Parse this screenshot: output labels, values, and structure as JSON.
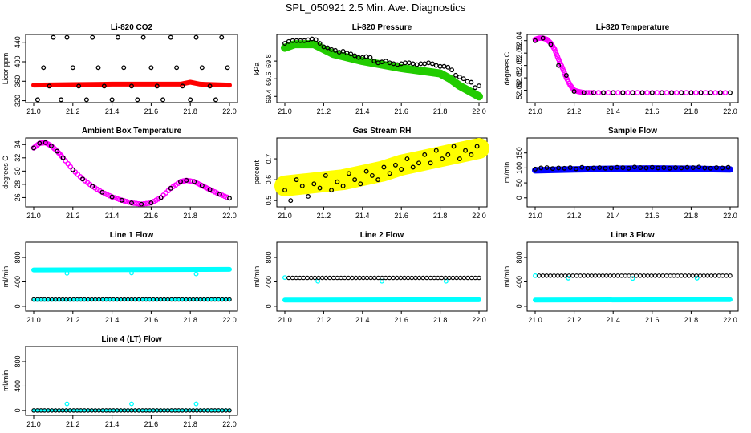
{
  "title": "SPL_050921  2.5 Min. Ave. Diagnostics",
  "colors": {
    "red": "#ff0000",
    "green": "#22cc00",
    "magenta": "#ff00ff",
    "yellow": "#ffff00",
    "blue": "#0000ff",
    "cyan": "#00ffff",
    "black": "#000000"
  },
  "chart_data": [
    {
      "id": "co2",
      "type": "scatter",
      "title": "Li-820 CO2",
      "ylabel": "Licor ppm",
      "xlim": [
        21.0,
        22.0
      ],
      "ylim": [
        316,
        456
      ],
      "yticks": [
        320,
        360,
        400,
        440
      ],
      "xticks": [
        21.0,
        21.2,
        21.4,
        21.6,
        21.8,
        22.0
      ],
      "series": [
        {
          "color": "red",
          "kind": "band",
          "x": [
            21.0,
            21.2,
            21.4,
            21.6,
            21.75,
            21.8,
            21.85,
            22.0
          ],
          "y": [
            352,
            353,
            354,
            354,
            354,
            358,
            354,
            352
          ],
          "width": 6
        },
        {
          "color": "black",
          "kind": "circles",
          "x": [
            21.02,
            21.05,
            21.08,
            21.1,
            21.14,
            21.17,
            21.2,
            21.23,
            21.27,
            21.3,
            21.33,
            21.36,
            21.4,
            21.43,
            21.46,
            21.5,
            21.53,
            21.56,
            21.6,
            21.63,
            21.66,
            21.7,
            21.73,
            21.76,
            21.8,
            21.83,
            21.86,
            21.9,
            21.93,
            21.96,
            21.99
          ],
          "y": [
            322,
            388,
            350,
            450,
            322,
            450,
            388,
            350,
            322,
            450,
            388,
            350,
            322,
            450,
            388,
            350,
            322,
            450,
            388,
            350,
            322,
            450,
            388,
            350,
            322,
            450,
            388,
            350,
            322,
            450,
            388
          ]
        }
      ]
    },
    {
      "id": "pressure",
      "type": "scatter",
      "title": "Li-820 Pressure",
      "ylabel": "kPa",
      "xlim": [
        21.0,
        22.0
      ],
      "ylim": [
        69.33,
        70.1
      ],
      "yticks": [
        69.4,
        69.6,
        69.8
      ],
      "ytick_labels": [
        "69.4",
        "69.6",
        "69.8"
      ],
      "xticks": [
        21.0,
        21.2,
        21.4,
        21.6,
        21.8,
        22.0
      ],
      "series": [
        {
          "color": "green",
          "kind": "band",
          "x": [
            21.0,
            21.05,
            21.15,
            21.25,
            21.4,
            21.6,
            21.8,
            21.85,
            21.9,
            22.0
          ],
          "y": [
            69.95,
            69.99,
            69.99,
            69.88,
            69.8,
            69.72,
            69.66,
            69.6,
            69.52,
            69.4
          ],
          "width": 10
        },
        {
          "color": "black",
          "kind": "circles",
          "x": [
            21.0,
            21.02,
            21.04,
            21.06,
            21.08,
            21.1,
            21.12,
            21.14,
            21.16,
            21.18,
            21.2,
            21.22,
            21.24,
            21.26,
            21.28,
            21.3,
            21.32,
            21.34,
            21.36,
            21.38,
            21.4,
            21.42,
            21.44,
            21.46,
            21.48,
            21.5,
            21.52,
            21.54,
            21.56,
            21.58,
            21.6,
            21.62,
            21.64,
            21.66,
            21.68,
            21.7,
            21.72,
            21.74,
            21.76,
            21.78,
            21.8,
            21.82,
            21.84,
            21.86,
            21.88,
            21.9,
            21.92,
            21.94,
            21.96,
            21.98,
            22.0
          ],
          "y": [
            70.0,
            70.02,
            70.03,
            70.03,
            70.03,
            70.03,
            70.04,
            70.05,
            70.04,
            70.0,
            69.96,
            69.95,
            69.93,
            69.92,
            69.9,
            69.91,
            69.89,
            69.88,
            69.86,
            69.84,
            69.84,
            69.85,
            69.84,
            69.8,
            69.78,
            69.79,
            69.8,
            69.78,
            69.77,
            69.76,
            69.77,
            69.78,
            69.78,
            69.77,
            69.76,
            69.77,
            69.77,
            69.78,
            69.77,
            69.75,
            69.74,
            69.74,
            69.73,
            69.7,
            69.64,
            69.62,
            69.6,
            69.57,
            69.56,
            69.5,
            69.52
          ]
        }
      ]
    },
    {
      "id": "licor-temp",
      "type": "scatter",
      "title": "Li-820 Temperature",
      "ylabel": "degrees C",
      "xlim": [
        21.0,
        22.0
      ],
      "ylim": [
        51.99,
        52.045
      ],
      "yticks": [
        52.0,
        52.01,
        52.02,
        52.03,
        52.04
      ],
      "ytick_labels": [
        "52.00",
        "52.01",
        "52.02",
        "52.03",
        "52.04"
      ],
      "xticks": [
        21.0,
        21.2,
        21.4,
        21.6,
        21.8,
        22.0
      ],
      "series": [
        {
          "color": "magenta",
          "kind": "circles-dense",
          "x": [
            21.0,
            21.02,
            21.04,
            21.06,
            21.08,
            21.1,
            21.12,
            21.14,
            21.16,
            21.18,
            21.2,
            21.22,
            21.25,
            21.3,
            21.4,
            21.5,
            21.6,
            21.7,
            21.8,
            21.9,
            22.0
          ],
          "y": [
            52.041,
            52.042,
            52.042,
            52.041,
            52.038,
            52.033,
            52.025,
            52.018,
            52.01,
            52.004,
            52.0,
            51.999,
            51.998,
            51.998,
            51.998,
            51.998,
            51.998,
            51.998,
            51.998,
            51.998,
            51.998
          ]
        },
        {
          "color": "black",
          "kind": "circles",
          "x": [
            21.0,
            21.04,
            21.08,
            21.12,
            21.16,
            21.2,
            21.25,
            21.3,
            21.35,
            21.4,
            21.45,
            21.5,
            21.55,
            21.6,
            21.65,
            21.7,
            21.75,
            21.8,
            21.85,
            21.9,
            21.95,
            22.0
          ],
          "y": [
            52.04,
            52.042,
            52.037,
            52.02,
            52.012,
            51.999,
            51.998,
            51.998,
            51.998,
            51.998,
            51.998,
            51.998,
            51.998,
            51.998,
            51.998,
            51.998,
            51.998,
            51.998,
            51.998,
            51.998,
            51.998,
            51.998
          ]
        }
      ]
    },
    {
      "id": "ambient",
      "type": "scatter",
      "title": "Ambient Box Temperature",
      "ylabel": "degrees C",
      "xlim": [
        21.0,
        22.0
      ],
      "ylim": [
        24.6,
        35.0
      ],
      "yticks": [
        26,
        28,
        30,
        32,
        34
      ],
      "xticks": [
        21.0,
        21.2,
        21.4,
        21.6,
        21.8,
        22.0
      ],
      "series": [
        {
          "color": "magenta",
          "kind": "circles-dense",
          "x": [
            21.0,
            21.03,
            21.06,
            21.09,
            21.12,
            21.15,
            21.2,
            21.25,
            21.3,
            21.35,
            21.4,
            21.45,
            21.5,
            21.55,
            21.6,
            21.65,
            21.7,
            21.75,
            21.78,
            21.82,
            21.86,
            21.9,
            21.95,
            22.0
          ],
          "y": [
            33.5,
            34.2,
            34.3,
            33.8,
            33.0,
            32.0,
            30.2,
            28.8,
            27.7,
            26.8,
            26.1,
            25.6,
            25.2,
            25.0,
            25.2,
            26.0,
            27.4,
            28.4,
            28.6,
            28.4,
            27.8,
            27.2,
            26.5,
            25.9
          ]
        },
        {
          "color": "black",
          "kind": "circles",
          "x": [
            21.0,
            21.03,
            21.06,
            21.09,
            21.12,
            21.15,
            21.2,
            21.25,
            21.3,
            21.35,
            21.4,
            21.45,
            21.5,
            21.55,
            21.6,
            21.65,
            21.7,
            21.75,
            21.78,
            21.82,
            21.86,
            21.9,
            21.95,
            22.0
          ],
          "y": [
            33.5,
            34.2,
            34.3,
            33.8,
            33.0,
            32.0,
            30.2,
            28.8,
            27.7,
            26.8,
            26.1,
            25.6,
            25.2,
            25.0,
            25.2,
            26.0,
            27.4,
            28.4,
            28.6,
            28.4,
            27.8,
            27.2,
            26.5,
            25.9
          ]
        }
      ]
    },
    {
      "id": "rh",
      "type": "scatter",
      "title": "Gas Stream RH",
      "ylabel": "percent",
      "xlim": [
        21.0,
        22.0
      ],
      "ylim": [
        0.47,
        0.8
      ],
      "yticks": [
        0.5,
        0.6,
        0.7
      ],
      "ytick_labels": [
        "0.5",
        "0.6",
        "0.7"
      ],
      "xticks": [
        21.0,
        21.2,
        21.4,
        21.6,
        21.8,
        22.0
      ],
      "series": [
        {
          "color": "yellow",
          "kind": "band",
          "x": [
            21.0,
            21.1,
            21.2,
            21.3,
            21.4,
            21.5,
            21.6,
            21.7,
            21.8,
            21.9,
            22.0
          ],
          "y": [
            0.57,
            0.58,
            0.59,
            0.6,
            0.62,
            0.64,
            0.67,
            0.69,
            0.71,
            0.73,
            0.75
          ],
          "width": 26
        },
        {
          "color": "black",
          "kind": "circles",
          "x": [
            21.0,
            21.03,
            21.06,
            21.09,
            21.12,
            21.15,
            21.18,
            21.21,
            21.24,
            21.27,
            21.3,
            21.33,
            21.36,
            21.39,
            21.42,
            21.45,
            21.48,
            21.51,
            21.54,
            21.57,
            21.6,
            21.63,
            21.66,
            21.69,
            21.72,
            21.75,
            21.78,
            21.81,
            21.84,
            21.87,
            21.9,
            21.93,
            21.96,
            21.99
          ],
          "y": [
            0.55,
            0.5,
            0.6,
            0.57,
            0.52,
            0.58,
            0.56,
            0.62,
            0.55,
            0.59,
            0.57,
            0.63,
            0.6,
            0.58,
            0.64,
            0.62,
            0.6,
            0.66,
            0.63,
            0.67,
            0.65,
            0.7,
            0.66,
            0.68,
            0.72,
            0.68,
            0.74,
            0.7,
            0.72,
            0.76,
            0.7,
            0.74,
            0.72,
            0.76
          ]
        }
      ]
    },
    {
      "id": "sample-flow",
      "type": "scatter",
      "title": "Sample Flow",
      "ylabel": "ml/min",
      "xlim": [
        21.0,
        22.0
      ],
      "ylim": [
        -30,
        200
      ],
      "yticks": [
        0,
        50,
        100,
        150
      ],
      "xticks": [
        21.0,
        21.2,
        21.4,
        21.6,
        21.8,
        22.0
      ],
      "series": [
        {
          "color": "blue",
          "kind": "band",
          "x": [
            21.0,
            21.2,
            21.4,
            21.6,
            21.8,
            22.0
          ],
          "y": [
            92,
            95,
            97,
            98,
            97,
            95
          ],
          "width": 8
        },
        {
          "color": "black",
          "kind": "circles",
          "x": [
            21.0,
            21.03,
            21.06,
            21.09,
            21.12,
            21.15,
            21.18,
            21.21,
            21.24,
            21.27,
            21.3,
            21.33,
            21.36,
            21.39,
            21.42,
            21.45,
            21.48,
            21.51,
            21.54,
            21.57,
            21.6,
            21.63,
            21.66,
            21.69,
            21.72,
            21.75,
            21.78,
            21.81,
            21.84,
            21.87,
            21.9,
            21.93,
            21.96,
            21.99
          ],
          "y": [
            96,
            100,
            101,
            98,
            100,
            99,
            101,
            97,
            102,
            99,
            100,
            101,
            99,
            100,
            102,
            101,
            99,
            103,
            101,
            100,
            102,
            100,
            101,
            99,
            101,
            100,
            102,
            101,
            103,
            100,
            99,
            101,
            100,
            102
          ]
        }
      ]
    },
    {
      "id": "line1",
      "type": "scatter",
      "title": "Line 1 Flow",
      "ylabel": "ml/min",
      "xlim": [
        21.0,
        22.0
      ],
      "ylim": [
        -80,
        1050
      ],
      "yticks": [
        0,
        400,
        800
      ],
      "xticks": [
        21.0,
        21.2,
        21.4,
        21.6,
        21.8,
        22.0
      ],
      "series": [
        {
          "color": "cyan",
          "kind": "band",
          "x": [
            21.0,
            22.0
          ],
          "y": [
            595,
            605
          ],
          "width": 6
        },
        {
          "color": "cyan",
          "kind": "outliers",
          "x": [
            21.17,
            21.5,
            21.83
          ],
          "y": [
            540,
            545,
            530
          ]
        },
        {
          "color": "cyan",
          "kind": "band",
          "x": [
            21.0,
            22.0
          ],
          "y": [
            100,
            110
          ],
          "width": 4
        },
        {
          "color": "black",
          "kind": "circles-row",
          "xstart": 21.0,
          "xend": 22.0,
          "n": 55,
          "y": 110
        }
      ]
    },
    {
      "id": "line2",
      "type": "scatter",
      "title": "Line 2 Flow",
      "ylabel": "ml/min",
      "xlim": [
        21.0,
        22.0
      ],
      "ylim": [
        -80,
        1050
      ],
      "yticks": [
        0,
        400,
        800
      ],
      "xticks": [
        21.0,
        21.2,
        21.4,
        21.6,
        21.8,
        22.0
      ],
      "series": [
        {
          "color": "cyan",
          "kind": "band",
          "x": [
            21.0,
            22.0
          ],
          "y": [
            100,
            105
          ],
          "width": 6
        },
        {
          "color": "cyan",
          "kind": "outliers",
          "x": [
            21.0,
            21.17,
            21.5,
            21.83
          ],
          "y": [
            470,
            410,
            410,
            410
          ]
        },
        {
          "color": "black",
          "kind": "circles-row",
          "xstart": 21.02,
          "xend": 22.0,
          "n": 52,
          "y": 465
        }
      ]
    },
    {
      "id": "line3",
      "type": "scatter",
      "title": "Line 3 Flow",
      "ylabel": "ml/min",
      "xlim": [
        21.0,
        22.0
      ],
      "ylim": [
        -80,
        1050
      ],
      "yticks": [
        0,
        400,
        800
      ],
      "xticks": [
        21.0,
        21.2,
        21.4,
        21.6,
        21.8,
        22.0
      ],
      "series": [
        {
          "color": "cyan",
          "kind": "band",
          "x": [
            21.0,
            22.0
          ],
          "y": [
            100,
            108
          ],
          "width": 6
        },
        {
          "color": "cyan",
          "kind": "outliers",
          "x": [
            21.0,
            21.17,
            21.5,
            21.83
          ],
          "y": [
            500,
            460,
            455,
            460
          ]
        },
        {
          "color": "black",
          "kind": "circles-row",
          "xstart": 21.02,
          "xend": 22.0,
          "n": 52,
          "y": 500
        }
      ]
    },
    {
      "id": "line4",
      "type": "scatter",
      "title": "Line 4 (LT) Flow",
      "ylabel": "ml/min",
      "xlim": [
        21.0,
        22.0
      ],
      "ylim": [
        -80,
        1050
      ],
      "yticks": [
        0,
        400,
        800
      ],
      "xticks": [
        21.0,
        21.2,
        21.4,
        21.6,
        21.8,
        22.0
      ],
      "series": [
        {
          "color": "cyan",
          "kind": "band",
          "x": [
            21.0,
            22.0
          ],
          "y": [
            0,
            2
          ],
          "width": 4
        },
        {
          "color": "cyan",
          "kind": "outliers",
          "x": [
            21.17,
            21.5,
            21.83
          ],
          "y": [
            110,
            110,
            110
          ]
        },
        {
          "color": "black",
          "kind": "circles-row",
          "xstart": 21.0,
          "xend": 22.0,
          "n": 55,
          "y": 0
        }
      ]
    }
  ]
}
